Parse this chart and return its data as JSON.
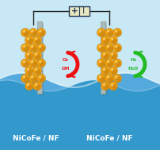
{
  "bg_sky_color": "#c8e8f5",
  "bg_water_color1": "#55aadd",
  "bg_water_color2": "#3399cc",
  "bg_water_color3": "#2288bb",
  "electrode_plate_color": "#aabbbb",
  "electrode_plate_edge": "#889999",
  "nano_main": "#f0a010",
  "nano_dark": "#b07010",
  "nano_light": "#ffe080",
  "battery_fill": "#e8e8c0",
  "battery_edge": "#223355",
  "wire_color": "#222222",
  "arrow_left_color": "#ee1111",
  "arrow_right_color": "#22bb22",
  "text_oh": "OH",
  "text_h2o": "H₂O",
  "plus_sign": "+",
  "minus_sign": "I",
  "label_left": "NiCoFe / NF",
  "label_right": "NiCoFe / NF",
  "label_color": "#ffffff",
  "label_fontsize": 6.5,
  "figsize": [
    2.02,
    1.89
  ],
  "dpi": 100
}
